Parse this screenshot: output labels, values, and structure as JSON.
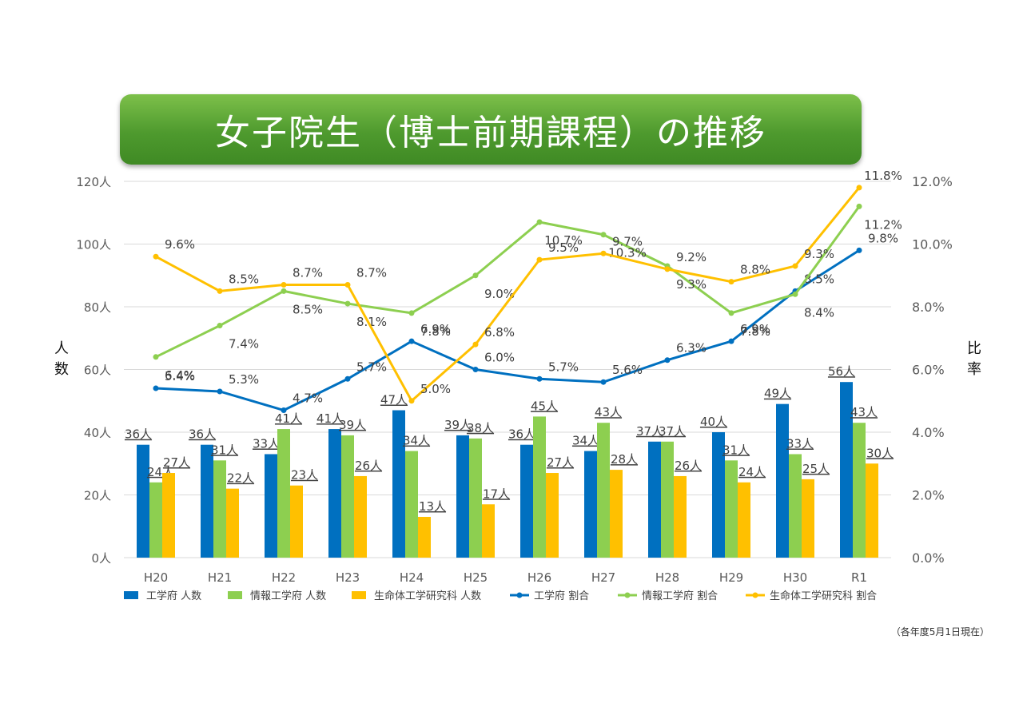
{
  "title": "女子院生（博士前期課程）の推移",
  "footnote": "（各年度5月1日現在）",
  "colors": {
    "blue": "#0070c0",
    "green": "#8dcf50",
    "orange": "#ffc000",
    "grid": "#d9d9d9",
    "title_bg": "#5aa83a"
  },
  "chart_data": {
    "type": "bar",
    "title": "女子院生（博士前期課程）の推移",
    "categories": [
      "H20",
      "H21",
      "H22",
      "H23",
      "H24",
      "H25",
      "H26",
      "H27",
      "H28",
      "H29",
      "H30",
      "R1"
    ],
    "ylabel": "人数",
    "y2label": "比率",
    "ylim": [
      0,
      120
    ],
    "y2lim": [
      0,
      12
    ],
    "yticks": [
      "0人",
      "20人",
      "40人",
      "60人",
      "80人",
      "100人",
      "120人"
    ],
    "y2ticks": [
      "0.0%",
      "2.0%",
      "4.0%",
      "6.0%",
      "8.0%",
      "10.0%",
      "12.0%"
    ],
    "grid": true,
    "legend_position": "bottom",
    "bar_series": [
      {
        "name": "工学府 人数",
        "color": "#0070c0",
        "values": [
          36,
          36,
          33,
          41,
          47,
          39,
          36,
          34,
          37,
          40,
          49,
          56
        ]
      },
      {
        "name": "情報工学府 人数",
        "color": "#8dcf50",
        "values": [
          24,
          31,
          41,
          39,
          34,
          38,
          45,
          43,
          37,
          31,
          33,
          43
        ]
      },
      {
        "name": "生命体工学研究科 人数",
        "color": "#ffc000",
        "values": [
          27,
          22,
          23,
          26,
          13,
          17,
          27,
          28,
          26,
          24,
          25,
          30
        ]
      }
    ],
    "line_series": [
      {
        "name": "工学府 割合",
        "color": "#0070c0",
        "values": [
          5.4,
          5.3,
          4.7,
          5.7,
          6.9,
          6.0,
          5.7,
          5.6,
          6.3,
          6.9,
          8.5,
          9.8
        ]
      },
      {
        "name": "情報工学府 割合",
        "color": "#8dcf50",
        "values": [
          6.4,
          7.4,
          8.5,
          8.1,
          7.8,
          9.0,
          10.7,
          10.3,
          9.3,
          7.8,
          8.4,
          11.2
        ]
      },
      {
        "name": "生命体工学研究科 割合",
        "color": "#ffc000",
        "values": [
          9.6,
          8.5,
          8.7,
          8.7,
          5.0,
          6.8,
          9.5,
          9.7,
          9.2,
          8.8,
          9.3,
          11.8
        ]
      }
    ],
    "bar_value_suffix": "人",
    "line_value_suffix": "%"
  }
}
